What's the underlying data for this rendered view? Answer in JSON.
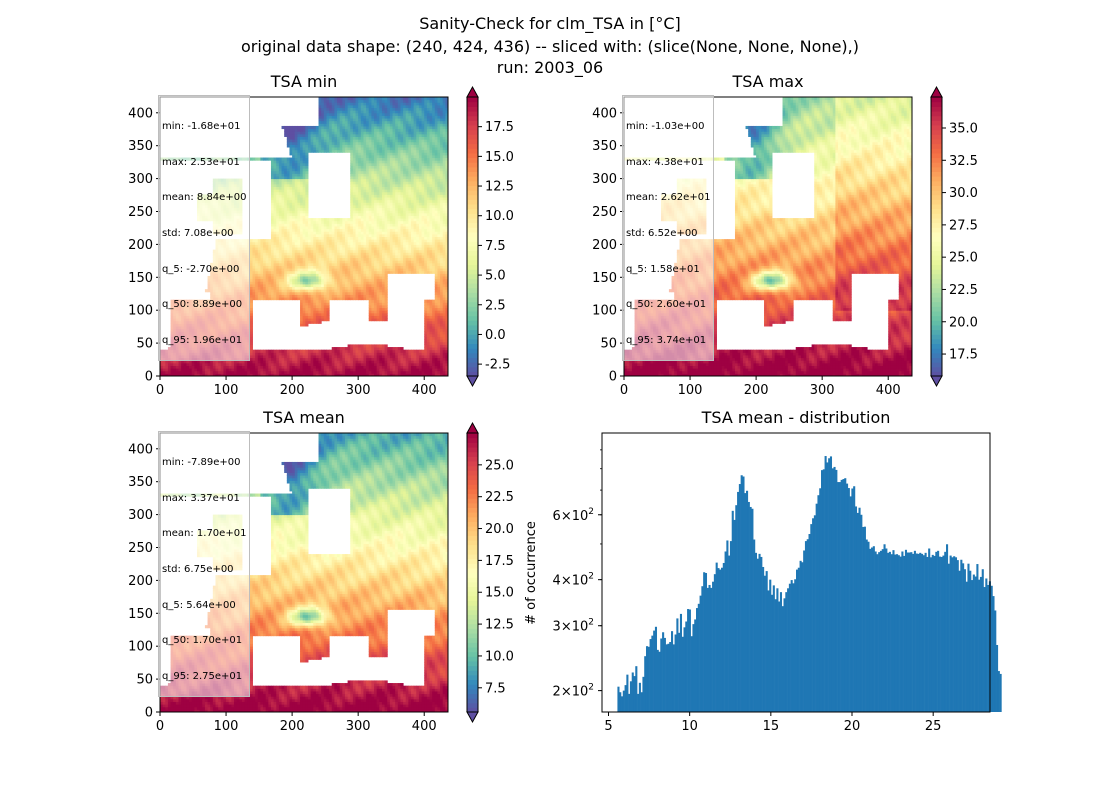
{
  "figure": {
    "title_line1": "Sanity-Check for clm_TSA in [°C]",
    "title_line2": "original data shape: (240, 424, 436) -- sliced with: (slice(None, None, None),)",
    "title_line3": "run: 2003_06"
  },
  "colormap": {
    "name": "Spectral_r",
    "stops": [
      "#5e4fa2",
      "#3288bd",
      "#66c2a5",
      "#abdda4",
      "#e6f598",
      "#ffffbf",
      "#fee08b",
      "#fdae61",
      "#f46d43",
      "#d53e4f",
      "#9e0142"
    ]
  },
  "panels": [
    {
      "title": "TSA min",
      "stats": [
        "min: -1.68e+01",
        "max: 2.53e+01",
        "mean: 8.84e+00",
        "std: 7.08e+00",
        "q_5: -2.70e+00",
        "q_50: 8.89e+00",
        "q_95: 1.96e+01"
      ],
      "xticks": [
        "0",
        "100",
        "200",
        "300",
        "400"
      ],
      "yticks": [
        "0",
        "50",
        "100",
        "150",
        "200",
        "250",
        "300",
        "350",
        "400"
      ],
      "color_range": [
        -3.5,
        20
      ],
      "cbar_ticks": [
        "-2.5",
        "0.0",
        "2.5",
        "5.0",
        "7.5",
        "10.0",
        "12.5",
        "15.0",
        "17.5"
      ]
    },
    {
      "title": "TSA max",
      "stats": [
        "min: -1.03e+00",
        "max: 4.38e+01",
        "mean: 2.62e+01",
        "std: 6.52e+00",
        "q_5: 1.58e+01",
        "q_50: 2.60e+01",
        "q_95: 3.74e+01"
      ],
      "xticks": [
        "0",
        "100",
        "200",
        "300",
        "400"
      ],
      "yticks": [
        "0",
        "50",
        "100",
        "150",
        "200",
        "250",
        "300",
        "350",
        "400"
      ],
      "color_range": [
        15.8,
        37.4
      ],
      "cbar_ticks": [
        "17.5",
        "20.0",
        "22.5",
        "25.0",
        "27.5",
        "30.0",
        "32.5",
        "35.0"
      ]
    },
    {
      "title": "TSA mean",
      "stats": [
        "min: -7.89e+00",
        "max: 3.37e+01",
        "mean: 1.70e+01",
        "std: 6.75e+00",
        "q_5: 5.64e+00",
        "q_50: 1.70e+01",
        "q_95: 2.75e+01"
      ],
      "xticks": [
        "0",
        "100",
        "200",
        "300",
        "400"
      ],
      "yticks": [
        "0",
        "50",
        "100",
        "150",
        "200",
        "250",
        "300",
        "350",
        "400"
      ],
      "color_range": [
        5.6,
        27.5
      ],
      "cbar_ticks": [
        "7.5",
        "10.0",
        "12.5",
        "15.0",
        "17.5",
        "20.0",
        "22.5",
        "25.0"
      ]
    }
  ],
  "chart_data": [
    {
      "type": "heatmap",
      "title": "TSA min",
      "xlim": [
        0,
        436
      ],
      "ylim": [
        0,
        424
      ],
      "colorbar_range": [
        -3.5,
        20
      ]
    },
    {
      "type": "heatmap",
      "title": "TSA max",
      "xlim": [
        0,
        436
      ],
      "ylim": [
        0,
        424
      ],
      "colorbar_range": [
        15.8,
        37.4
      ]
    },
    {
      "type": "heatmap",
      "title": "TSA mean",
      "xlim": [
        0,
        436
      ],
      "ylim": [
        0,
        424
      ],
      "colorbar_range": [
        5.6,
        27.5
      ]
    },
    {
      "type": "bar",
      "title": "TSA mean - distribution",
      "ylabel": "# of occurrence",
      "yscale": "log",
      "xlim": [
        4.6,
        28.5
      ],
      "ylim": [
        175,
        1000
      ],
      "bar_color": "#1f77b4",
      "xticks": [
        "5",
        "10",
        "15",
        "20",
        "25"
      ],
      "ytick_major_labels": [
        {
          "base": "2",
          "value": 200
        },
        {
          "base": "3",
          "value": 300
        },
        {
          "base": "4",
          "value": 400
        },
        {
          "base": "6",
          "value": 600
        }
      ],
      "ytick_exponent": "2",
      "bins_start": 5.55,
      "bin_width": 0.11,
      "counts": [
        205,
        198,
        193,
        200,
        207,
        221,
        196,
        212,
        224,
        219,
        233,
        196,
        210,
        198,
        218,
        248,
        264,
        263,
        276,
        282,
        291,
        298,
        258,
        255,
        277,
        288,
        278,
        267,
        268,
        271,
        290,
        267,
        284,
        314,
        287,
        323,
        280,
        297,
        308,
        333,
        332,
        281,
        303,
        312,
        335,
        344,
        362,
        384,
        419,
        417,
        380,
        387,
        380,
        395,
        414,
        445,
        430,
        426,
        431,
        444,
        477,
        511,
        465,
        509,
        615,
        581,
        637,
        692,
        727,
        768,
        762,
        687,
        697,
        650,
        630,
        623,
        514,
        473,
        456,
        470,
        461,
        433,
        410,
        422,
        374,
        400,
        364,
        386,
        354,
        379,
        349,
        370,
        339,
        356,
        370,
        379,
        390,
        399,
        391,
        401,
        426,
        431,
        450,
        446,
        480,
        509,
        515,
        532,
        566,
        587,
        598,
        643,
        678,
        708,
        793,
        797,
        866,
        832,
        854,
        864,
        802,
        809,
        794,
        736,
        736,
        746,
        750,
        754,
        729,
        709,
        673,
        707,
        717,
        632,
        607,
        627,
        600,
        556,
        557,
        514,
        507,
        485,
        489,
        493,
        477,
        469,
        475,
        479,
        484,
        499,
        486,
        473,
        476,
        469,
        481,
        468,
        469,
        466,
        462,
        477,
        464,
        482,
        474,
        474,
        475,
        470,
        479,
        471,
        470,
        473,
        470,
        466,
        473,
        461,
        486,
        460,
        467,
        464,
        476,
        479,
        462,
        461,
        465,
        476,
        499,
        442,
        465,
        460,
        463,
        460,
        452,
        423,
        453,
        443,
        427,
        395,
        442,
        423,
        399,
        413,
        408,
        441,
        400,
        407,
        427,
        382,
        403,
        387,
        396,
        385,
        361,
        330,
        266,
        226,
        222
      ]
    }
  ]
}
